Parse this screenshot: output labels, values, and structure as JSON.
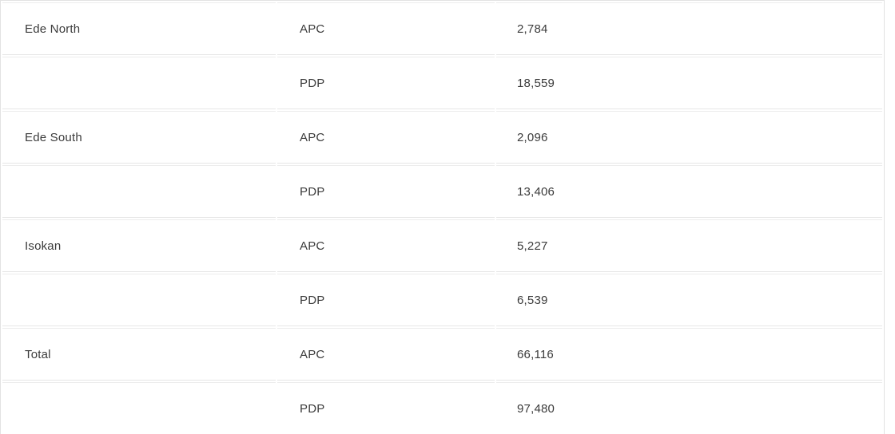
{
  "table": {
    "name": "election-results-by-lga",
    "columns": [
      "lga",
      "party",
      "votes"
    ],
    "rows": [
      {
        "lga": "Ede North",
        "party": "APC",
        "votes": "2,784"
      },
      {
        "lga": "",
        "party": "PDP",
        "votes": "18,559"
      },
      {
        "lga": "Ede South",
        "party": "APC",
        "votes": "2,096"
      },
      {
        "lga": "",
        "party": "PDP",
        "votes": "13,406"
      },
      {
        "lga": "Isokan",
        "party": "APC",
        "votes": "5,227"
      },
      {
        "lga": "",
        "party": "PDP",
        "votes": "6,539"
      },
      {
        "lga": "Total",
        "party": "APC",
        "votes": "66,116"
      },
      {
        "lga": "",
        "party": "PDP",
        "votes": "97,480"
      }
    ],
    "colors": {
      "background": "#ffffff",
      "border": "#e2e2e2",
      "row_separator": "#e6e6e6",
      "text": "#3b3b3b"
    }
  }
}
